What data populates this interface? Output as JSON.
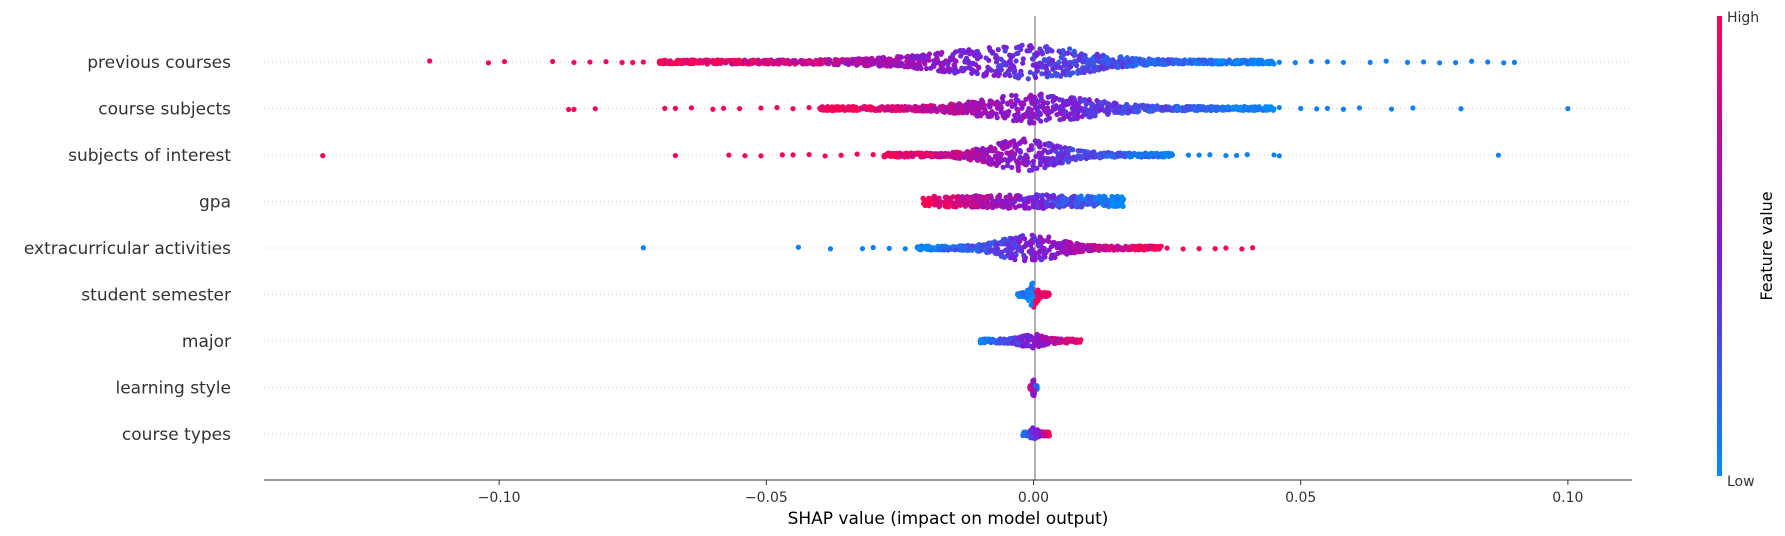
{
  "chart_data": {
    "type": "scatter",
    "subtype": "shap-beeswarm",
    "title": "",
    "xlabel": "SHAP value (impact on model output)",
    "xlim": [
      -0.144,
      0.112
    ],
    "xticks": [
      -0.1,
      -0.05,
      0.0,
      0.05,
      0.1
    ],
    "xtick_labels": [
      "−0.10",
      "−0.05",
      "0.00",
      "0.05",
      "0.10"
    ],
    "zero_line": 0.0,
    "grid": false,
    "row_guides": "dotted",
    "colorbar": {
      "label": "Feature value",
      "high_label": "High",
      "low_label": "Low",
      "high_color": "#ff0051",
      "mid_color": "#7f18d4",
      "low_color": "#008bfb",
      "placement": "right"
    },
    "features": [
      {
        "name": "previous courses",
        "density": 30,
        "left_tail": [
          {
            "x": -0.113,
            "v": 0.95
          },
          {
            "x": -0.102,
            "v": 0.95
          },
          {
            "x": -0.099,
            "v": 0.95
          },
          {
            "x": -0.09,
            "v": 0.95
          },
          {
            "x": -0.086,
            "v": 0.95
          },
          {
            "x": -0.083,
            "v": 0.95
          },
          {
            "x": -0.08,
            "v": 0.95
          },
          {
            "x": -0.077,
            "v": 0.95
          },
          {
            "x": -0.075,
            "v": 0.95
          },
          {
            "x": -0.073,
            "v": 0.95
          },
          {
            "x": -0.068,
            "v": 0.95
          }
        ],
        "body": {
          "start": -0.07,
          "end": 0.045,
          "peak": 0.0
        },
        "right_tail": [
          {
            "x": 0.046,
            "v": 0.05
          },
          {
            "x": 0.049,
            "v": 0.05
          },
          {
            "x": 0.052,
            "v": 0.05
          },
          {
            "x": 0.055,
            "v": 0.05
          },
          {
            "x": 0.058,
            "v": 0.05
          },
          {
            "x": 0.063,
            "v": 0.05
          },
          {
            "x": 0.066,
            "v": 0.05
          },
          {
            "x": 0.07,
            "v": 0.05
          },
          {
            "x": 0.073,
            "v": 0.05
          },
          {
            "x": 0.076,
            "v": 0.05
          },
          {
            "x": 0.079,
            "v": 0.05
          },
          {
            "x": 0.082,
            "v": 0.05
          },
          {
            "x": 0.085,
            "v": 0.05
          },
          {
            "x": 0.088,
            "v": 0.05
          },
          {
            "x": 0.09,
            "v": 0.05
          }
        ]
      },
      {
        "name": "course subjects",
        "density": 26,
        "left_tail": [
          {
            "x": -0.087,
            "v": 0.95
          },
          {
            "x": -0.086,
            "v": 0.95
          },
          {
            "x": -0.082,
            "v": 0.95
          },
          {
            "x": -0.069,
            "v": 0.95
          },
          {
            "x": -0.067,
            "v": 0.95
          },
          {
            "x": -0.064,
            "v": 0.95
          },
          {
            "x": -0.06,
            "v": 0.95
          },
          {
            "x": -0.058,
            "v": 0.95
          },
          {
            "x": -0.055,
            "v": 0.95
          },
          {
            "x": -0.051,
            "v": 0.95
          },
          {
            "x": -0.048,
            "v": 0.95
          },
          {
            "x": -0.045,
            "v": 0.95
          },
          {
            "x": -0.042,
            "v": 0.95
          }
        ],
        "body": {
          "start": -0.04,
          "end": 0.045,
          "peak": 0.0
        },
        "right_tail": [
          {
            "x": 0.046,
            "v": 0.05
          },
          {
            "x": 0.05,
            "v": 0.05
          },
          {
            "x": 0.053,
            "v": 0.05
          },
          {
            "x": 0.055,
            "v": 0.05
          },
          {
            "x": 0.058,
            "v": 0.05
          },
          {
            "x": 0.061,
            "v": 0.05
          },
          {
            "x": 0.067,
            "v": 0.05
          },
          {
            "x": 0.071,
            "v": 0.05
          },
          {
            "x": 0.08,
            "v": 0.05
          },
          {
            "x": 0.1,
            "v": 0.05
          }
        ]
      },
      {
        "name": "subjects of interest",
        "density": 28,
        "left_tail": [
          {
            "x": -0.133,
            "v": 0.95
          },
          {
            "x": -0.067,
            "v": 0.95
          },
          {
            "x": -0.057,
            "v": 0.95
          },
          {
            "x": -0.054,
            "v": 0.95
          },
          {
            "x": -0.051,
            "v": 0.95
          },
          {
            "x": -0.047,
            "v": 0.95
          },
          {
            "x": -0.045,
            "v": 0.95
          },
          {
            "x": -0.042,
            "v": 0.95
          },
          {
            "x": -0.039,
            "v": 0.95
          },
          {
            "x": -0.036,
            "v": 0.95
          },
          {
            "x": -0.033,
            "v": 0.95
          },
          {
            "x": -0.03,
            "v": 0.95
          }
        ],
        "body": {
          "start": -0.028,
          "end": 0.026,
          "peak": -0.002
        },
        "right_tail": [
          {
            "x": 0.026,
            "v": 0.05
          },
          {
            "x": 0.029,
            "v": 0.05
          },
          {
            "x": 0.031,
            "v": 0.05
          },
          {
            "x": 0.033,
            "v": 0.05
          },
          {
            "x": 0.036,
            "v": 0.05
          },
          {
            "x": 0.038,
            "v": 0.05
          },
          {
            "x": 0.04,
            "v": 0.05
          },
          {
            "x": 0.045,
            "v": 0.05
          },
          {
            "x": 0.046,
            "v": 0.05
          },
          {
            "x": 0.087,
            "v": 0.05
          }
        ]
      },
      {
        "name": "gpa",
        "density": 14,
        "left_tail": [],
        "body": {
          "start": -0.021,
          "end": 0.017,
          "peak": -0.001,
          "flat": true
        },
        "right_tail": []
      },
      {
        "name": "extracurricular activities",
        "density": 24,
        "left_tail": [
          {
            "x": -0.073,
            "v": 0.05
          },
          {
            "x": -0.044,
            "v": 0.05
          },
          {
            "x": -0.038,
            "v": 0.05
          },
          {
            "x": -0.032,
            "v": 0.05
          },
          {
            "x": -0.03,
            "v": 0.05
          },
          {
            "x": -0.027,
            "v": 0.05
          },
          {
            "x": -0.024,
            "v": 0.05
          }
        ],
        "body": {
          "start": -0.022,
          "end": 0.024,
          "peak": -0.001
        },
        "right_tail": [
          {
            "x": 0.025,
            "v": 0.95
          },
          {
            "x": 0.028,
            "v": 0.95
          },
          {
            "x": 0.031,
            "v": 0.95
          },
          {
            "x": 0.034,
            "v": 0.95
          },
          {
            "x": 0.036,
            "v": 0.95
          },
          {
            "x": 0.039,
            "v": 0.95
          },
          {
            "x": 0.041,
            "v": 0.95
          }
        ],
        "inverted": true
      },
      {
        "name": "student semester",
        "density": 22,
        "left_tail": [],
        "body": {
          "start": -0.003,
          "end": 0.003,
          "peak": 0.0,
          "split": true
        },
        "right_tail": [],
        "inverted": true
      },
      {
        "name": "major",
        "density": 10,
        "left_tail": [],
        "body": {
          "start": -0.01,
          "end": 0.009,
          "peak": 0.0
        },
        "right_tail": [],
        "inverted": true
      },
      {
        "name": "learning style",
        "density": 16,
        "left_tail": [],
        "body": {
          "start": -0.0007,
          "end": 0.0007,
          "peak": 0.0
        },
        "right_tail": []
      },
      {
        "name": "course types",
        "density": 9,
        "left_tail": [],
        "body": {
          "start": -0.002,
          "end": 0.003,
          "peak": 0.0
        },
        "right_tail": [],
        "inverted": true
      }
    ]
  }
}
